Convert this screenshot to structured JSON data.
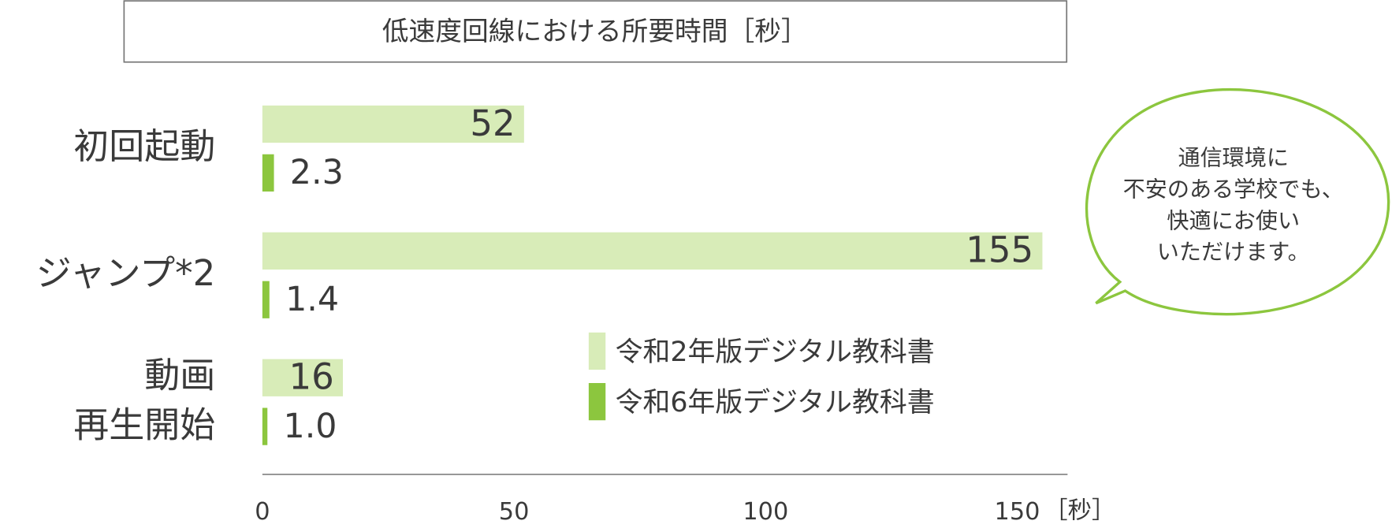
{
  "chart_data": {
    "type": "bar",
    "orientation": "horizontal",
    "title": "低速度回線における所要時間［秒］",
    "categories": [
      [
        "初回起動"
      ],
      [
        "ジャンプ*2"
      ],
      [
        "動画",
        "再生開始"
      ]
    ],
    "series": [
      {
        "name": "令和2年版デジタル教科書",
        "color": "#d8ecb8",
        "values": [
          52,
          155,
          16
        ]
      },
      {
        "name": "令和6年版デジタル教科書",
        "color": "#8cc63e",
        "values": [
          2.3,
          1.4,
          1.0
        ],
        "value_labels": [
          "2.3",
          "1.4",
          "1.0"
        ]
      }
    ],
    "xlim": [
      0,
      160
    ],
    "xticks": [
      0,
      50,
      100,
      150
    ],
    "x_unit": "［秒］",
    "annotation": [
      "通信環境に",
      "不安のある学校でも、",
      "快適にお使い",
      "いただけます。"
    ]
  }
}
